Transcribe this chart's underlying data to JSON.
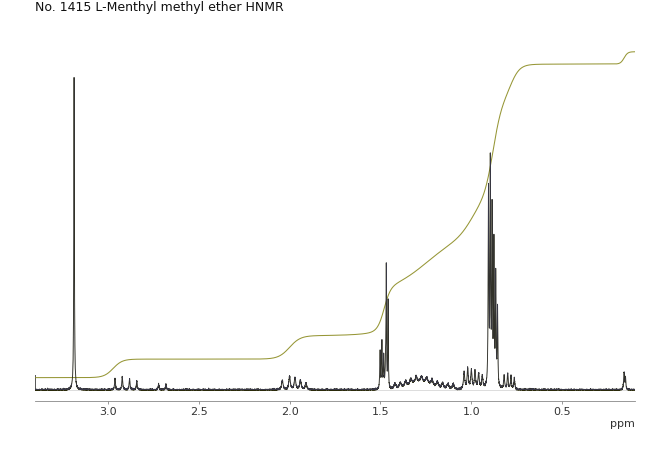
{
  "title": "No. 1415 L-Menthyl methyl ether HNMR",
  "title_fontsize": 9,
  "xlabel": "ppm",
  "xlabel_fontsize": 8,
  "xlim": [
    3.4,
    0.1
  ],
  "ylim_spec": [
    0.0,
    1.0
  ],
  "background_color": "#ffffff",
  "spectrum_color": "#2a2a0a",
  "integral_color": "#8B8B20",
  "tick_positions": [
    3.0,
    2.5,
    2.0,
    1.5,
    1.0,
    0.5
  ],
  "tick_labels": [
    "3.0",
    "2.5",
    "2.0",
    "1.5",
    "1.0",
    "0.5"
  ],
  "figsize": [
    6.5,
    4.51
  ],
  "dpi": 100
}
